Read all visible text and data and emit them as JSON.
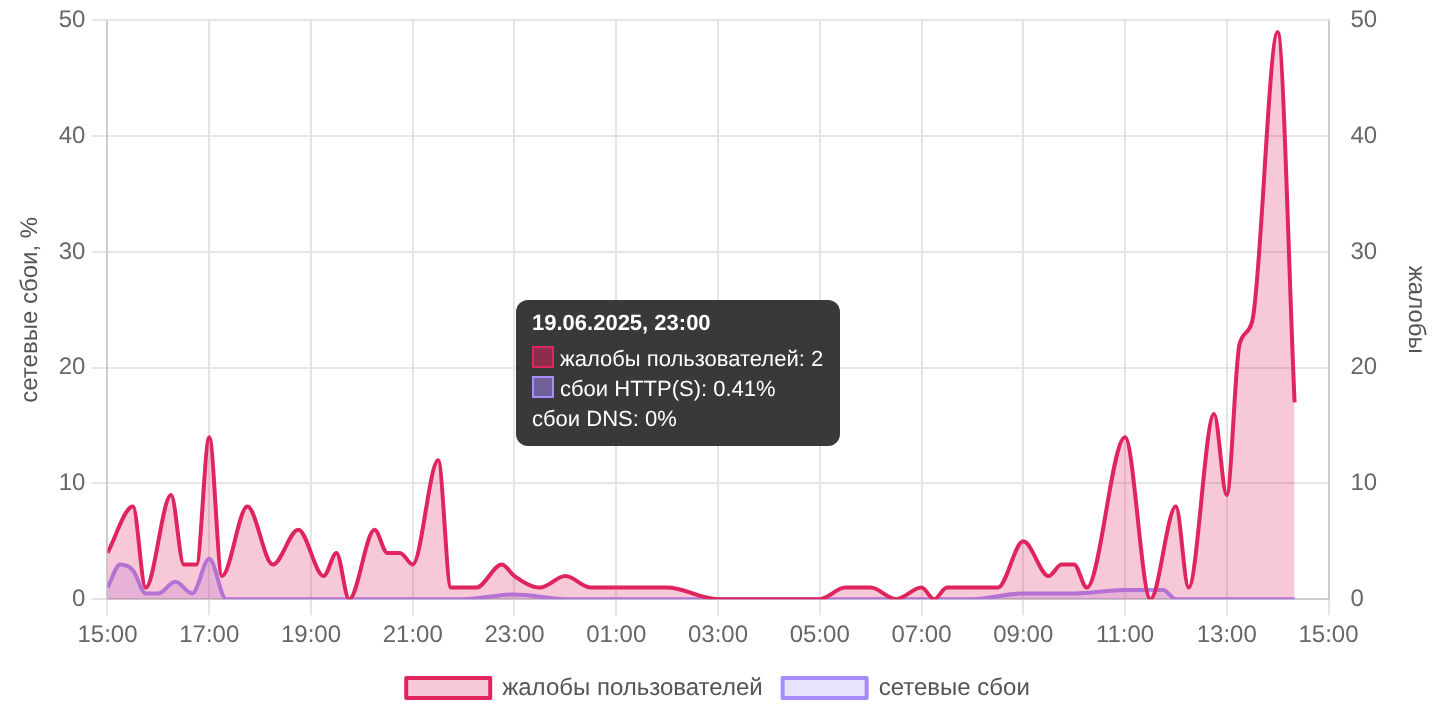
{
  "chart_data": {
    "type": "area",
    "ylabel": "сетевые сбои, %",
    "y2label": "жалобы",
    "xlim": [
      "2025-06-19T15:00",
      "2025-06-20T15:00"
    ],
    "xticks": [
      {
        "value": "2025-06-19T15:00",
        "label": "15:00"
      },
      {
        "value": "2025-06-19T17:00",
        "label": "17:00"
      },
      {
        "value": "2025-06-19T19:00",
        "label": "19:00"
      },
      {
        "value": "2025-06-19T21:00",
        "label": "21:00"
      },
      {
        "value": "2025-06-19T23:00",
        "label": "23:00"
      },
      {
        "value": "2025-06-20T01:00",
        "label": "01:00"
      },
      {
        "value": "2025-06-20T03:00",
        "label": "03:00"
      },
      {
        "value": "2025-06-20T05:00",
        "label": "05:00"
      },
      {
        "value": "2025-06-20T07:00",
        "label": "07:00"
      },
      {
        "value": "2025-06-20T09:00",
        "label": "09:00"
      },
      {
        "value": "2025-06-20T11:00",
        "label": "11:00"
      },
      {
        "value": "2025-06-20T13:00",
        "label": "13:00"
      },
      {
        "value": "2025-06-20T15:00",
        "label": "15:00"
      }
    ],
    "ylim": [
      0,
      50
    ],
    "yticks": [
      0,
      10,
      20,
      30,
      40,
      50
    ],
    "y2lim": [
      0,
      50
    ],
    "y2ticks": [
      0,
      10,
      20,
      30,
      40,
      50
    ],
    "grid": true,
    "legend": "bottom",
    "marker": "none",
    "line_style": "solid",
    "series": [
      {
        "name": "жалобы пользователей",
        "color": "#e0245e",
        "axis": "y2",
        "x": [
          "2025-06-19T15:00",
          "2025-06-19T15:30",
          "2025-06-19T15:45",
          "2025-06-19T16:15",
          "2025-06-19T16:30",
          "2025-06-19T16:45",
          "2025-06-19T17:00",
          "2025-06-19T17:15",
          "2025-06-19T17:45",
          "2025-06-19T18:15",
          "2025-06-19T18:45",
          "2025-06-19T19:15",
          "2025-06-19T19:30",
          "2025-06-19T19:45",
          "2025-06-19T20:15",
          "2025-06-19T20:30",
          "2025-06-19T20:45",
          "2025-06-19T21:00",
          "2025-06-19T21:30",
          "2025-06-19T21:45",
          "2025-06-19T22:15",
          "2025-06-19T22:45",
          "2025-06-19T23:00",
          "2025-06-19T23:30",
          "2025-06-20T00:00",
          "2025-06-20T00:30",
          "2025-06-20T01:00",
          "2025-06-20T02:00",
          "2025-06-20T03:00",
          "2025-06-20T04:00",
          "2025-06-20T05:00",
          "2025-06-20T05:30",
          "2025-06-20T06:00",
          "2025-06-20T06:30",
          "2025-06-20T07:00",
          "2025-06-20T07:15",
          "2025-06-20T07:30",
          "2025-06-20T08:00",
          "2025-06-20T08:30",
          "2025-06-20T09:00",
          "2025-06-20T09:30",
          "2025-06-20T09:45",
          "2025-06-20T10:00",
          "2025-06-20T10:15",
          "2025-06-20T11:00",
          "2025-06-20T11:30",
          "2025-06-20T12:00",
          "2025-06-20T12:15",
          "2025-06-20T12:45",
          "2025-06-20T13:00",
          "2025-06-20T13:15",
          "2025-06-20T13:30",
          "2025-06-20T14:00",
          "2025-06-20T14:20"
        ],
        "values": [
          4,
          8,
          1,
          9,
          3,
          3,
          14,
          2,
          8,
          3,
          6,
          2,
          4,
          0,
          6,
          4,
          4,
          3,
          12,
          1,
          1,
          3,
          2,
          1,
          2,
          1,
          1,
          1,
          0,
          0,
          0,
          1,
          1,
          0,
          1,
          0,
          1,
          1,
          1,
          5,
          2,
          3,
          3,
          1,
          14,
          0,
          8,
          1,
          16,
          9,
          22,
          24,
          49,
          17
        ]
      },
      {
        "name": "сетевые сбои",
        "color": "#a78bfa",
        "x": [
          "2025-06-19T15:00",
          "2025-06-19T15:15",
          "2025-06-19T15:30",
          "2025-06-19T15:45",
          "2025-06-19T16:00",
          "2025-06-19T16:20",
          "2025-06-19T16:40",
          "2025-06-19T17:00",
          "2025-06-19T17:20",
          "2025-06-19T18:00",
          "2025-06-19T19:00",
          "2025-06-19T20:00",
          "2025-06-19T21:00",
          "2025-06-19T22:00",
          "2025-06-19T23:00",
          "2025-06-20T00:00",
          "2025-06-20T02:00",
          "2025-06-20T04:00",
          "2025-06-20T06:00",
          "2025-06-20T08:00",
          "2025-06-20T09:00",
          "2025-06-20T10:00",
          "2025-06-20T11:00",
          "2025-06-20T11:45",
          "2025-06-20T12:00",
          "2025-06-20T13:00",
          "2025-06-20T14:20"
        ],
        "values": [
          1,
          3,
          2.5,
          0.5,
          0.5,
          1.5,
          0.5,
          3.5,
          0,
          0,
          0,
          0,
          0,
          0,
          0.41,
          0,
          0,
          0,
          0,
          0,
          0.5,
          0.5,
          0.8,
          0.8,
          0,
          0,
          0
        ]
      }
    ],
    "annotations": [
      "19.06.2025, 23:00",
      "жалобы пользователей: 2",
      "сбои HTTP(S): 0.41%",
      "сбои DNS: 0%"
    ]
  }
}
